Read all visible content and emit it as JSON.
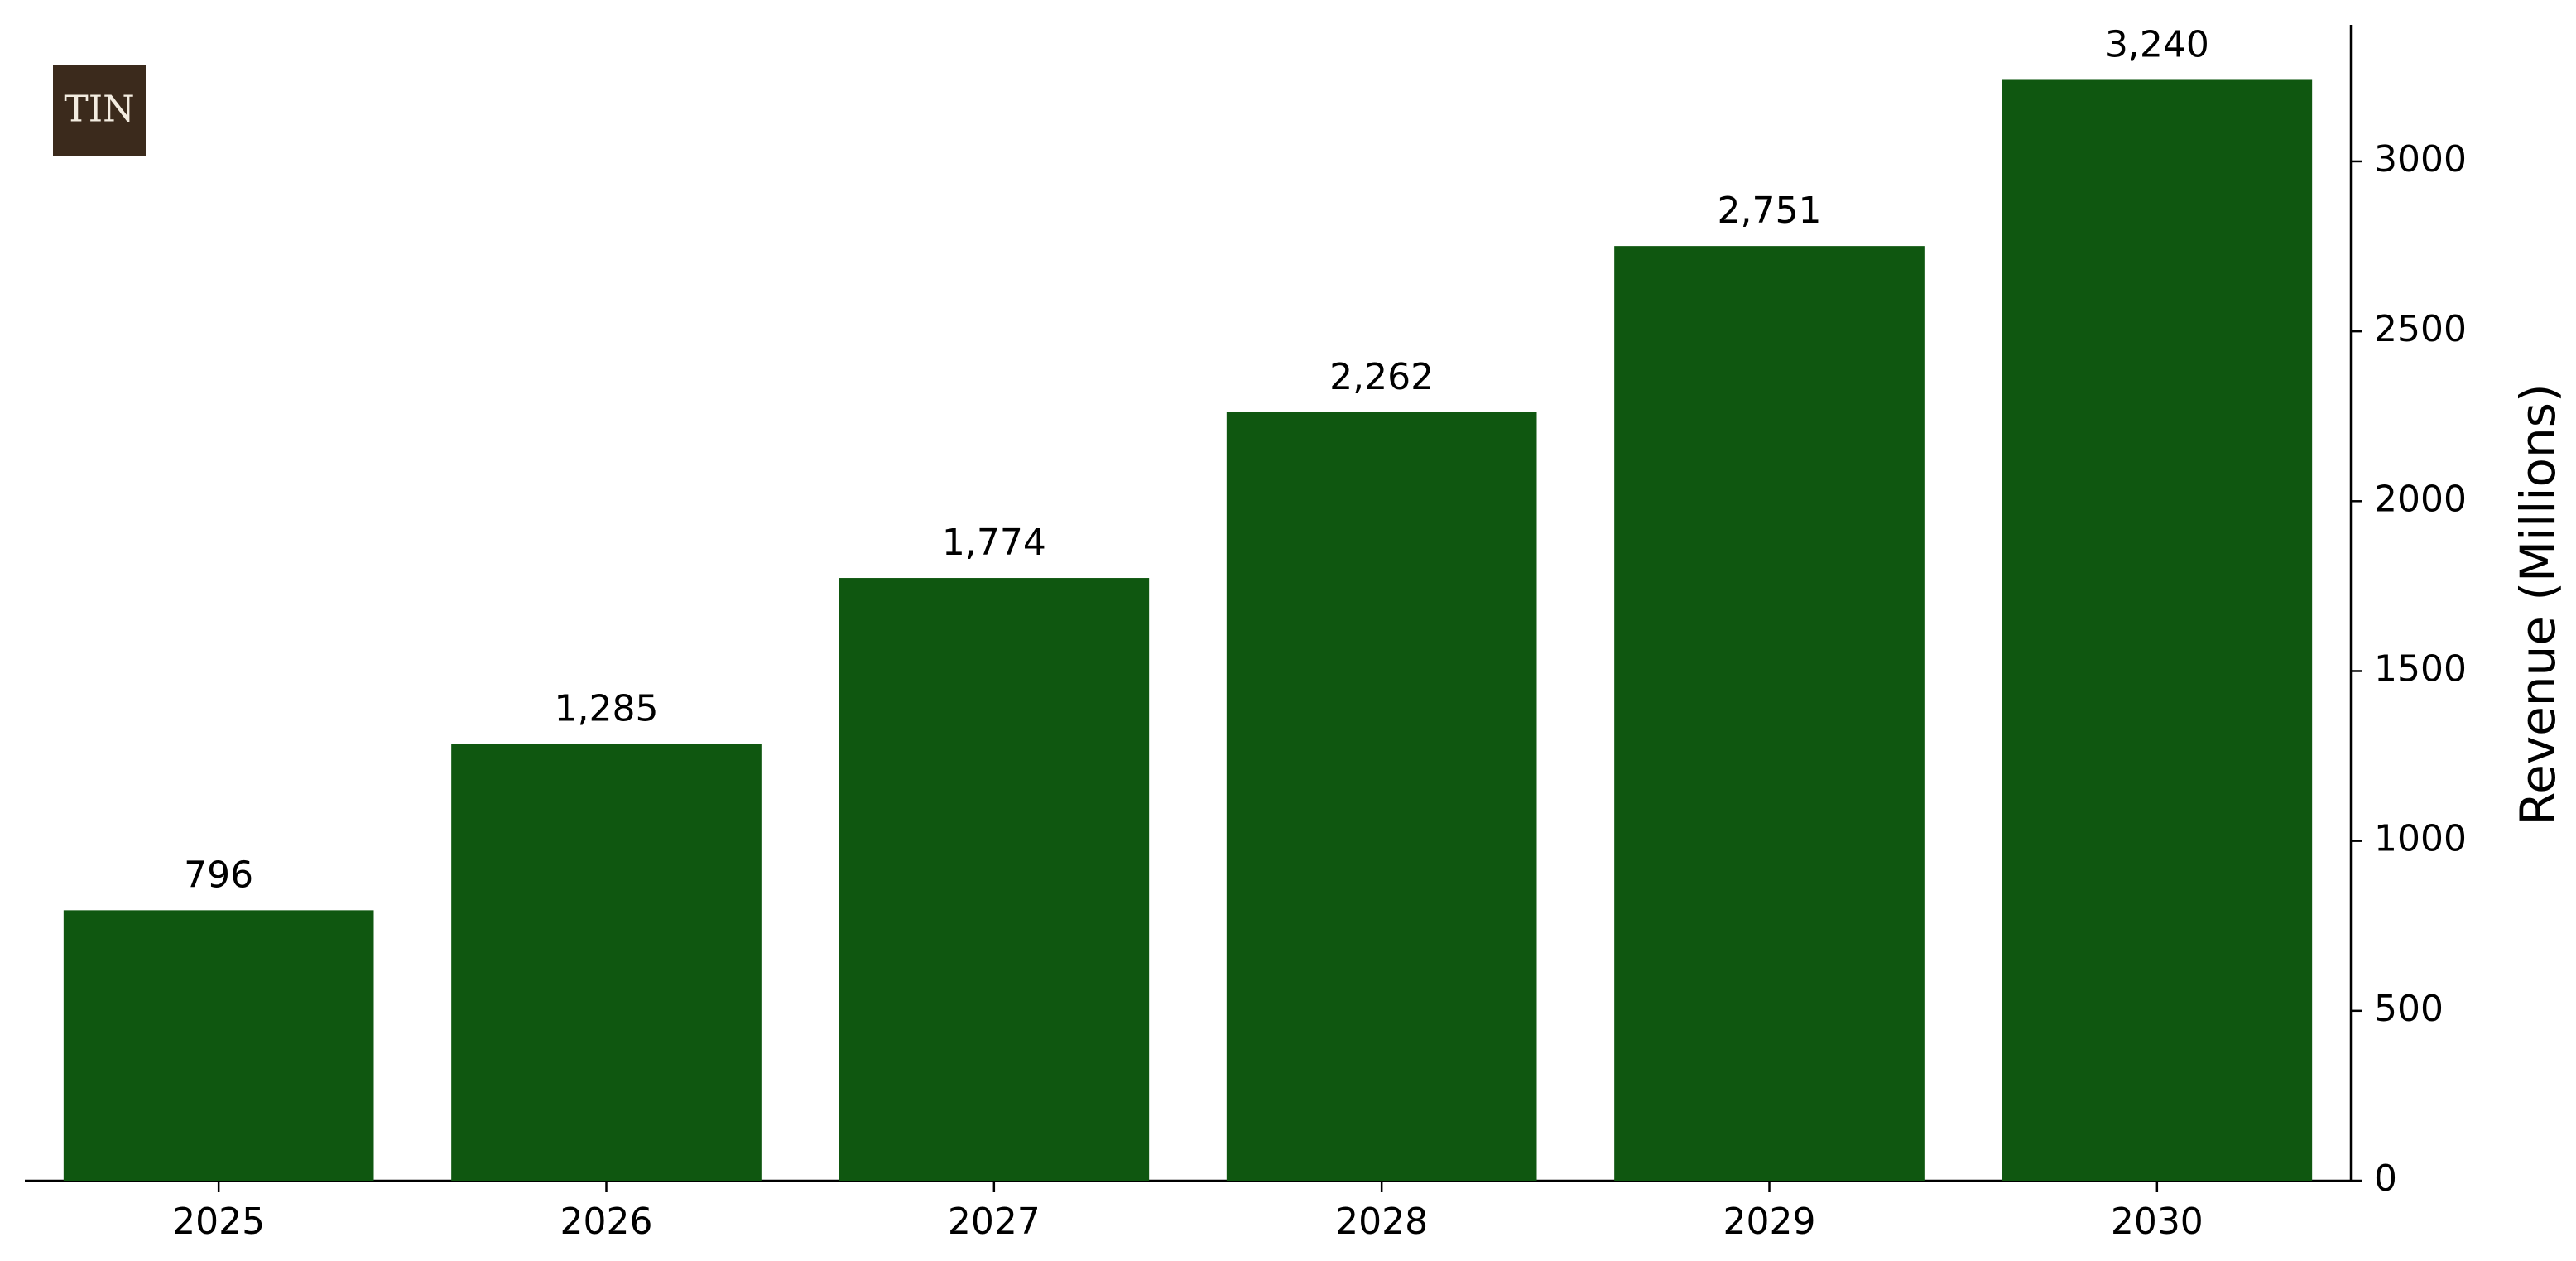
{
  "chart_data": {
    "type": "bar",
    "logo": "TIN",
    "categories": [
      "2025",
      "2026",
      "2027",
      "2028",
      "2029",
      "2030"
    ],
    "values": [
      796,
      1285,
      1774,
      2262,
      2751,
      3240
    ],
    "value_labels": [
      "796",
      "1,285",
      "1,774",
      "2,262",
      "2,751",
      "3,240"
    ],
    "color": "#0f5710",
    "y_axis_label": "Revenue (Millions)",
    "y_axis_side": "right",
    "ylim": [
      0,
      3402
    ],
    "yticks": [
      0,
      500,
      1000,
      1500,
      2000,
      2500,
      3000
    ],
    "grid": false
  }
}
